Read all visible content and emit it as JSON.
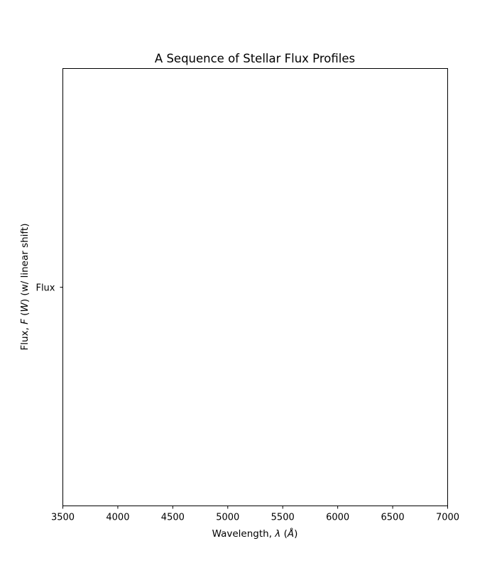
{
  "chart_data": {
    "type": "line",
    "title": "A Sequence of Stellar Flux Profiles",
    "xlabel_parts": [
      "Wavelength, ",
      "λ",
      " (",
      "Å",
      ")"
    ],
    "ylabel_parts": [
      "Flux, ",
      "F",
      " (",
      "W",
      ") (w/ linear shift)"
    ],
    "xlim": [
      3500,
      7000
    ],
    "xticks": [
      3500,
      4000,
      4500,
      5000,
      5500,
      6000,
      6500,
      7000
    ],
    "yticks": [
      "Flux"
    ],
    "grid": false,
    "series": []
  }
}
